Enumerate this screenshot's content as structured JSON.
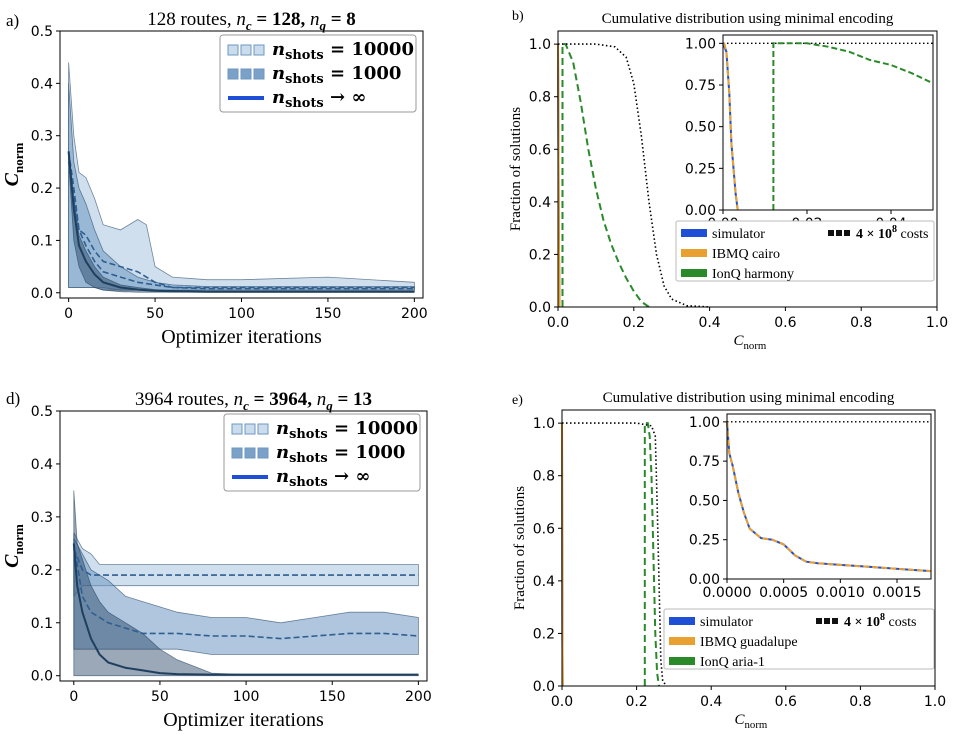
{
  "colors": {
    "blue_light": "#a8c4e0",
    "blue_mid": "#6e97c2",
    "blue_dark": "#1f3f5f",
    "sim": "#1f4fd6",
    "ibmq": "#e8a030",
    "ionq": "#2a8a2a"
  },
  "panel_labels": {
    "a": "a)",
    "b": "b)",
    "d": "d)",
    "e": "e)"
  },
  "chart_data": [
    {
      "id": "a",
      "type": "area",
      "title": "128 routes, n_c = 128, n_q = 8",
      "title_parts": {
        "prefix": "128 routes, ",
        "nc": "n",
        "nc_sub": "c",
        "nc_val": " = 128, ",
        "nq": "n",
        "nq_sub": "q",
        "nq_val": " = 8"
      },
      "xlabel": "Optimizer iterations",
      "ylabel": "C",
      "ylabel_sub": "norm",
      "xlim": [
        -5,
        205
      ],
      "ylim": [
        -0.01,
        0.5
      ],
      "xticks": [
        "0",
        "50",
        "100",
        "150",
        "200"
      ],
      "yticks": [
        "0.0",
        "0.1",
        "0.2",
        "0.3",
        "0.4",
        "0.5"
      ],
      "legend": [
        {
          "name": "n_shots = 10000",
          "base": "n",
          "sub": "shots",
          "rest": " = 10000"
        },
        {
          "name": "n_shots = 1000",
          "base": "n",
          "sub": "shots",
          "rest": " = 1000"
        },
        {
          "name": "n_shots → ∞",
          "base": "n",
          "sub": "shots",
          "rest": " → ∞"
        }
      ],
      "series": [
        {
          "name": "n_shots = 10000",
          "x": [
            0,
            3,
            6,
            10,
            15,
            20,
            30,
            40,
            45,
            50,
            60,
            80,
            100,
            150,
            200
          ],
          "mean": [
            0.27,
            0.2,
            0.12,
            0.11,
            0.08,
            0.06,
            0.05,
            0.04,
            0.03,
            0.02,
            0.01,
            0.01,
            0.01,
            0.01,
            0.01
          ],
          "upper": [
            0.44,
            0.3,
            0.23,
            0.22,
            0.18,
            0.13,
            0.12,
            0.14,
            0.13,
            0.05,
            0.03,
            0.025,
            0.025,
            0.03,
            0.02
          ],
          "lower": [
            0.01,
            0.01,
            0.01,
            0.01,
            0.01,
            0.01,
            0.005,
            0.005,
            0.005,
            0.005,
            0.005,
            0.005,
            0.005,
            0.005,
            0.005
          ]
        },
        {
          "name": "n_shots = 1000",
          "x": [
            0,
            3,
            6,
            10,
            15,
            20,
            30,
            40,
            50,
            60,
            80,
            100,
            150,
            200
          ],
          "mean": [
            0.25,
            0.18,
            0.12,
            0.09,
            0.06,
            0.04,
            0.03,
            0.02,
            0.015,
            0.01,
            0.008,
            0.008,
            0.008,
            0.008
          ],
          "upper": [
            0.4,
            0.25,
            0.2,
            0.17,
            0.12,
            0.08,
            0.05,
            0.03,
            0.02,
            0.015,
            0.012,
            0.012,
            0.012,
            0.012
          ],
          "lower": [
            0.01,
            0.01,
            0.01,
            0.01,
            0.01,
            0.005,
            0.005,
            0.005,
            0.005,
            0.005,
            0.005,
            0.005,
            0.005,
            0.005
          ]
        },
        {
          "name": "n_shots → ∞",
          "x": [
            0,
            3,
            6,
            10,
            15,
            20,
            30,
            40,
            50,
            60,
            80,
            100,
            150,
            200
          ],
          "mean": [
            0.27,
            0.16,
            0.09,
            0.06,
            0.035,
            0.02,
            0.01,
            0.006,
            0.004,
            0.003,
            0.002,
            0.002,
            0.002,
            0.002
          ],
          "upper": [
            0.27,
            0.18,
            0.11,
            0.08,
            0.05,
            0.03,
            0.015,
            0.01,
            0.006,
            0.004,
            0.003,
            0.003,
            0.003,
            0.003
          ],
          "lower": [
            0.25,
            0.1,
            0.05,
            0.02,
            0.01,
            0.005,
            0.002,
            0.001,
            0.001,
            0.001,
            0.001,
            0.001,
            0.001,
            0.001
          ]
        }
      ]
    },
    {
      "id": "b",
      "type": "line",
      "title": "Cumulative distribution using minimal encoding",
      "xlabel": "C",
      "xlabel_sub": "norm",
      "ylabel": "Fraction of solutions",
      "xlim": [
        0,
        1.0
      ],
      "ylim": [
        0,
        1.05
      ],
      "xticks": [
        "0.0",
        "0.2",
        "0.4",
        "0.6",
        "0.8",
        "1.0"
      ],
      "yticks": [
        "0.0",
        "0.2",
        "0.4",
        "0.6",
        "0.8",
        "1.0"
      ],
      "legend": [
        {
          "name": "simulator"
        },
        {
          "name": "IBMQ cairo"
        },
        {
          "name": "IonQ harmony"
        }
      ],
      "costs_label": {
        "prefix": "4 × 10",
        "exp": "8",
        "suffix": " costs"
      },
      "series": [
        {
          "name": "simulator",
          "x": [
            0,
            0.002,
            0.004
          ],
          "y": [
            1.0,
            0.3,
            0.0
          ]
        },
        {
          "name": "IBMQ cairo",
          "x": [
            0,
            0.002,
            0.004
          ],
          "y": [
            1.0,
            0.3,
            0.0
          ]
        },
        {
          "name": "IonQ harmony",
          "x": [
            0.012,
            0.012,
            0.02,
            0.04,
            0.06,
            0.08,
            0.1,
            0.12,
            0.14,
            0.16,
            0.18,
            0.2,
            0.22,
            0.24
          ],
          "y": [
            0.0,
            1.0,
            1.0,
            0.93,
            0.78,
            0.6,
            0.45,
            0.33,
            0.24,
            0.17,
            0.11,
            0.06,
            0.02,
            0.0
          ]
        },
        {
          "name": "4 × 10^8 costs",
          "x": [
            0,
            0.1,
            0.15,
            0.18,
            0.2,
            0.22,
            0.24,
            0.26,
            0.28,
            0.3,
            0.34,
            0.4
          ],
          "y": [
            1.0,
            1.0,
            0.99,
            0.95,
            0.85,
            0.65,
            0.4,
            0.2,
            0.08,
            0.03,
            0.005,
            0.0
          ]
        }
      ],
      "inset": {
        "xlim": [
          0,
          0.05
        ],
        "ylim": [
          0,
          1.05
        ],
        "xticks": [
          "0.00",
          "0.02",
          "0.04"
        ],
        "yticks": [
          "0.00",
          "0.25",
          "0.50",
          "0.75",
          "1.00"
        ],
        "series": [
          {
            "name": "simulator",
            "x": [
              0,
              0.0008,
              0.0015,
              0.002,
              0.003,
              0.0035
            ],
            "y": [
              1.0,
              0.95,
              0.7,
              0.4,
              0.1,
              0.0
            ]
          },
          {
            "name": "IBMQ cairo",
            "x": [
              0.0003,
              0.0008,
              0.0015,
              0.002,
              0.003,
              0.0035
            ],
            "y": [
              1.0,
              0.95,
              0.7,
              0.4,
              0.1,
              0.0
            ]
          },
          {
            "name": "IonQ harmony",
            "x": [
              0.012,
              0.012,
              0.015,
              0.02,
              0.025,
              0.03,
              0.035,
              0.04,
              0.045,
              0.05
            ],
            "y": [
              0.0,
              1.0,
              1.0,
              1.0,
              0.98,
              0.95,
              0.9,
              0.87,
              0.82,
              0.76
            ]
          }
        ]
      }
    },
    {
      "id": "d",
      "type": "area",
      "title": "3964 routes, n_c = 3964, n_q = 13",
      "title_parts": {
        "prefix": "3964 routes, ",
        "nc": "n",
        "nc_sub": "c",
        "nc_val": " = 3964, ",
        "nq": "n",
        "nq_sub": "q",
        "nq_val": " = 13"
      },
      "xlabel": "Optimizer iterations",
      "ylabel": "C",
      "ylabel_sub": "norm",
      "xlim": [
        -8,
        205
      ],
      "ylim": [
        -0.01,
        0.5
      ],
      "xticks": [
        "0",
        "50",
        "100",
        "150",
        "200"
      ],
      "yticks": [
        "0.0",
        "0.1",
        "0.2",
        "0.3",
        "0.4",
        "0.5"
      ],
      "legend": [
        {
          "name": "n_shots = 10000",
          "base": "n",
          "sub": "shots",
          "rest": " = 10000"
        },
        {
          "name": "n_shots = 1000",
          "base": "n",
          "sub": "shots",
          "rest": " = 1000"
        },
        {
          "name": "n_shots → ∞",
          "base": "n",
          "sub": "shots",
          "rest": " → ∞"
        }
      ],
      "series": [
        {
          "name": "n_shots = 10000",
          "x": [
            0,
            5,
            10,
            15,
            20,
            30,
            50,
            100,
            150,
            200
          ],
          "mean": [
            0.24,
            0.2,
            0.19,
            0.19,
            0.19,
            0.19,
            0.19,
            0.19,
            0.19,
            0.19
          ],
          "upper": [
            0.27,
            0.24,
            0.23,
            0.21,
            0.21,
            0.21,
            0.21,
            0.21,
            0.21,
            0.21
          ],
          "lower": [
            0.15,
            0.17,
            0.17,
            0.17,
            0.17,
            0.17,
            0.17,
            0.17,
            0.17,
            0.17
          ]
        },
        {
          "name": "n_shots = 1000",
          "x": [
            0,
            5,
            10,
            20,
            30,
            40,
            50,
            60,
            80,
            100,
            120,
            140,
            160,
            180,
            200
          ],
          "mean": [
            0.25,
            0.15,
            0.12,
            0.1,
            0.09,
            0.08,
            0.08,
            0.08,
            0.075,
            0.075,
            0.07,
            0.075,
            0.08,
            0.08,
            0.075
          ],
          "upper": [
            0.26,
            0.23,
            0.2,
            0.18,
            0.15,
            0.14,
            0.13,
            0.12,
            0.11,
            0.11,
            0.1,
            0.11,
            0.12,
            0.12,
            0.11
          ],
          "lower": [
            0.05,
            0.05,
            0.05,
            0.05,
            0.05,
            0.05,
            0.05,
            0.05,
            0.04,
            0.04,
            0.04,
            0.04,
            0.04,
            0.04,
            0.04
          ]
        },
        {
          "name": "n_shots → ∞",
          "x": [
            0,
            2,
            5,
            10,
            15,
            20,
            30,
            40,
            50,
            60,
            80,
            100,
            150,
            200
          ],
          "mean": [
            0.25,
            0.17,
            0.12,
            0.07,
            0.04,
            0.025,
            0.015,
            0.01,
            0.005,
            0.003,
            0.002,
            0.002,
            0.002,
            0.002
          ],
          "upper": [
            0.35,
            0.25,
            0.22,
            0.17,
            0.14,
            0.12,
            0.1,
            0.08,
            0.05,
            0.03,
            0.005,
            0.002,
            0.002,
            0.002
          ],
          "lower": [
            0.0,
            0.0,
            0.0,
            0.0,
            0.0,
            0.0,
            0.0,
            0.0,
            0.0,
            0.0,
            0.0,
            0.0,
            0.0,
            0.0
          ]
        }
      ]
    },
    {
      "id": "e",
      "type": "line",
      "title": "Cumulative distribution using minimal encoding",
      "xlabel": "C",
      "xlabel_sub": "norm",
      "ylabel": "Fraction of solutions",
      "xlim": [
        0,
        1.0
      ],
      "ylim": [
        0,
        1.05
      ],
      "xticks": [
        "0.0",
        "0.2",
        "0.4",
        "0.6",
        "0.8",
        "1.0"
      ],
      "yticks": [
        "0.0",
        "0.2",
        "0.4",
        "0.6",
        "0.8",
        "1.0"
      ],
      "legend": [
        {
          "name": "simulator"
        },
        {
          "name": "IBMQ guadalupe"
        },
        {
          "name": "IonQ aria-1"
        }
      ],
      "costs_label": {
        "prefix": "4 × 10",
        "exp": "8",
        "suffix": " costs"
      },
      "series": [
        {
          "name": "simulator",
          "x": [
            0,
            0.001,
            0.002
          ],
          "y": [
            1.0,
            0.2,
            0.0
          ]
        },
        {
          "name": "IBMQ guadalupe",
          "x": [
            0,
            0.001,
            0.002
          ],
          "y": [
            1.0,
            0.2,
            0.0
          ]
        },
        {
          "name": "IonQ aria-1",
          "x": [
            0.222,
            0.222,
            0.23,
            0.235,
            0.24,
            0.245,
            0.25,
            0.255,
            0.26
          ],
          "y": [
            0.0,
            1.0,
            1.0,
            0.95,
            0.8,
            0.5,
            0.2,
            0.05,
            0.0
          ]
        },
        {
          "name": "4 × 10^8 costs",
          "x": [
            0,
            0.2,
            0.24,
            0.25,
            0.255,
            0.26,
            0.265,
            0.27,
            0.28
          ],
          "y": [
            1.0,
            1.0,
            0.99,
            0.95,
            0.7,
            0.4,
            0.1,
            0.02,
            0.0
          ]
        }
      ],
      "inset": {
        "xlim": [
          0,
          0.0018
        ],
        "ylim": [
          0,
          1.05
        ],
        "xticks": [
          "0.0000",
          "0.0005",
          "0.0010",
          "0.0015"
        ],
        "yticks": [
          "0.00",
          "0.25",
          "0.50",
          "0.75",
          "1.00"
        ],
        "series": [
          {
            "name": "simulator",
            "x": [
              0,
              2e-05,
              5e-05,
              0.0001,
              0.00015,
              0.0002,
              0.0003,
              0.0004,
              0.0005,
              0.0006,
              0.0007,
              0.0008,
              0.001,
              0.0012,
              0.0014,
              0.0016,
              0.0018
            ],
            "y": [
              1.0,
              0.8,
              0.72,
              0.55,
              0.42,
              0.32,
              0.26,
              0.25,
              0.22,
              0.15,
              0.11,
              0.1,
              0.09,
              0.08,
              0.07,
              0.06,
              0.05
            ]
          },
          {
            "name": "IBMQ guadalupe",
            "x": [
              0,
              2e-05,
              5e-05,
              0.0001,
              0.00015,
              0.0002,
              0.0003,
              0.0004,
              0.0005,
              0.0006,
              0.0007,
              0.0008,
              0.001,
              0.0012,
              0.0014,
              0.0016,
              0.0018
            ],
            "y": [
              1.0,
              0.8,
              0.72,
              0.55,
              0.42,
              0.32,
              0.26,
              0.25,
              0.22,
              0.15,
              0.11,
              0.1,
              0.09,
              0.08,
              0.07,
              0.06,
              0.05
            ]
          }
        ]
      }
    }
  ]
}
